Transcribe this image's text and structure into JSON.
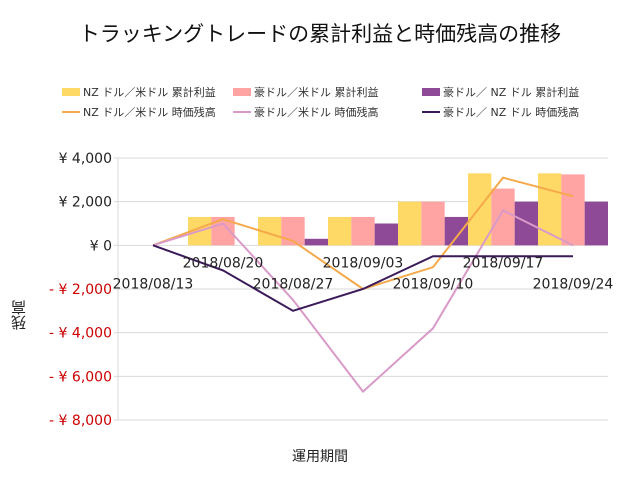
{
  "chart_data": {
    "type": "bar+line",
    "title": "トラッキングトレードの累計利益と時価残高の推移",
    "xlabel": "運用期間",
    "ylabel": "残高",
    "ylim": [
      -8000,
      4000
    ],
    "yticks": [
      4000,
      2000,
      0,
      -2000,
      -4000,
      -6000,
      -8000
    ],
    "ytick_labels": [
      "¥ 4,000",
      "¥ 2,000",
      "¥ 0",
      "- ¥ 2,000",
      "- ¥ 4,000",
      "- ¥ 6,000",
      "- ¥ 8,000"
    ],
    "negative_label_color": "#cc0000",
    "grid": true,
    "legend_position": "top",
    "categories": [
      "2018/08/13",
      "2018/08/20",
      "2018/08/27",
      "2018/09/03",
      "2018/09/10",
      "2018/09/17",
      "2018/09/24"
    ],
    "bar_series": [
      {
        "name": "NZ ドル／米ドル 累計利益",
        "color": "#ffd966",
        "values": [
          0,
          1300,
          1300,
          1300,
          2000,
          3300,
          3300
        ]
      },
      {
        "name": "豪ドル／米ドル 累計利益",
        "color": "#ffa3a3",
        "values": [
          0,
          1300,
          1300,
          1300,
          2000,
          2600,
          3250
        ]
      },
      {
        "name": "豪ドル／ NZ ドル 累計利益",
        "color": "#8e4a97",
        "values": [
          0,
          0,
          300,
          1000,
          1300,
          2000,
          2000
        ]
      }
    ],
    "line_series": [
      {
        "name": "NZ ドル／米ドル 時価残高",
        "color": "#f5a94a",
        "values": [
          0,
          1200,
          200,
          -2000,
          -1000,
          3100,
          2250
        ]
      },
      {
        "name": "豪ドル／米ドル 時価残高",
        "color": "#d99ac8",
        "values": [
          0,
          1000,
          -2500,
          -6700,
          -3800,
          1600,
          0
        ]
      },
      {
        "name": "豪ドル／ NZ ドル 時価残高",
        "color": "#3b1a5a",
        "values": [
          0,
          -1150,
          -3000,
          -2000,
          -500,
          -500,
          -500
        ]
      }
    ]
  }
}
